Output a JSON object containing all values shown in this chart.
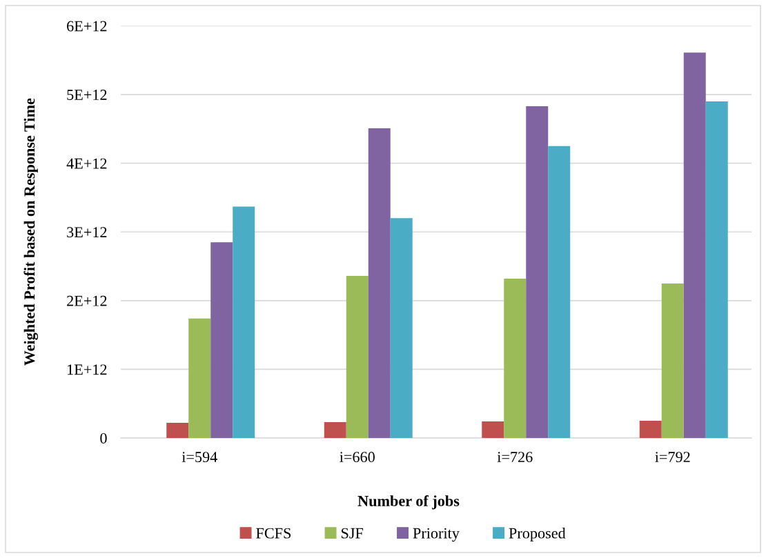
{
  "chart_data": {
    "type": "bar",
    "xlabel": "Number of jobs",
    "ylabel": "Weighted Profit based on Response Time",
    "categories": [
      "i=594",
      "i=660",
      "i=726",
      "i=792"
    ],
    "series": [
      {
        "name": "FCFS",
        "color": "#c0504d",
        "values": [
          220000000000.0,
          230000000000.0,
          240000000000.0,
          250000000000.0
        ]
      },
      {
        "name": "SJF",
        "color": "#9bbb59",
        "values": [
          1740000000000.0,
          2360000000000.0,
          2320000000000.0,
          2250000000000.0
        ]
      },
      {
        "name": "Priority",
        "color": "#8064a2",
        "values": [
          2850000000000.0,
          4510000000000.0,
          4830000000000.0,
          5610000000000.0
        ]
      },
      {
        "name": "Proposed",
        "color": "#4bacc6",
        "values": [
          3370000000000.0,
          3200000000000.0,
          4250000000000.0,
          4900000000000.0
        ]
      }
    ],
    "ylim": [
      0,
      6000000000000.0
    ],
    "yticks": [
      0,
      {
        "value": 1000000000000.0,
        "label": "1E+12"
      },
      {
        "value": 2000000000000.0,
        "label": "2E+12"
      },
      {
        "value": 3000000000000.0,
        "label": "3E+12"
      },
      {
        "value": 4000000000000.0,
        "label": "4E+12"
      },
      {
        "value": 5000000000000.0,
        "label": "5E+12"
      },
      {
        "value": 6000000000000.0,
        "label": "6E+12"
      }
    ],
    "grid": "y",
    "legend": "bottom"
  }
}
